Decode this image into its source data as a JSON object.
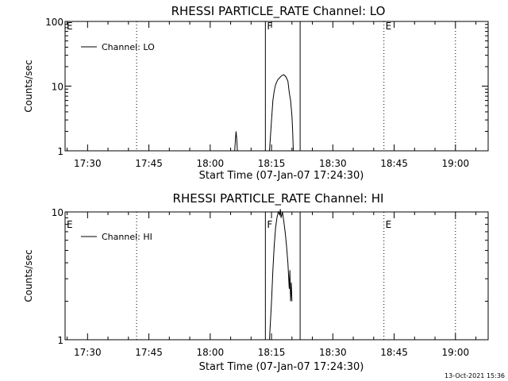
{
  "chart_data": [
    {
      "type": "line",
      "title": "RHESSI PARTICLE_RATE Channel: LO",
      "xlabel": "Start Time (07-Jan-07 17:24:30)",
      "ylabel": "Counts/sec",
      "y_scale": "log",
      "ylim": [
        1,
        100
      ],
      "y_ticks": [
        "1",
        "10",
        "100"
      ],
      "x_ticks": [
        "17:30",
        "17:45",
        "18:00",
        "18:15",
        "18:30",
        "18:45",
        "19:00"
      ],
      "legend": "Channel: LO",
      "series": [
        {
          "name": "Channel: LO",
          "x": [
            "18:06:00",
            "18:06:10",
            "18:06:20",
            "18:06:30",
            "18:06:40",
            "18:07:00",
            "18:14:30",
            "18:15:00",
            "18:15:20",
            "18:15:40",
            "18:16:00",
            "18:16:30",
            "18:17:00",
            "18:17:30",
            "18:18:00",
            "18:18:30",
            "18:19:00",
            "18:19:20",
            "18:19:40",
            "18:20:00",
            "18:20:10",
            "18:20:20"
          ],
          "y": [
            1.0,
            1.5,
            2.0,
            1.5,
            1.0,
            1.0,
            1.0,
            3.0,
            6.0,
            8.5,
            10.5,
            12.5,
            13.5,
            14.5,
            15.0,
            14.0,
            12.0,
            8.0,
            6.0,
            3.5,
            2.0,
            1.0
          ]
        }
      ],
      "vlines_dotted": [
        "17:42:00",
        "18:42:30",
        "19:00:00"
      ],
      "vlines_solid": [
        "18:13:30",
        "18:22:00"
      ],
      "annotations": [
        {
          "text": "E",
          "x": "17:24:30"
        },
        {
          "text": "F",
          "x": "18:13:30"
        },
        {
          "text": "E",
          "x": "18:42:30"
        }
      ]
    },
    {
      "type": "line",
      "title": "RHESSI PARTICLE_RATE Channel: HI",
      "xlabel": "Start Time (07-Jan-07 17:24:30)",
      "ylabel": "Counts/sec",
      "y_scale": "log",
      "ylim": [
        1,
        10
      ],
      "y_ticks": [
        "1",
        "10"
      ],
      "x_ticks": [
        "17:30",
        "17:45",
        "18:00",
        "18:15",
        "18:30",
        "18:45",
        "19:00"
      ],
      "legend": "Channel: HI",
      "series": [
        {
          "name": "Channel: HI",
          "x": [
            "18:14:30",
            "18:15:00",
            "18:15:20",
            "18:15:40",
            "18:16:00",
            "18:16:20",
            "18:16:40",
            "18:17:00",
            "18:17:10",
            "18:17:20",
            "18:17:40",
            "18:18:00",
            "18:18:20",
            "18:18:40",
            "18:19:00",
            "18:19:20",
            "18:19:30",
            "18:19:40",
            "18:19:50",
            "18:20:00"
          ],
          "y": [
            1.0,
            2.0,
            3.5,
            5.5,
            7.5,
            9.0,
            10.0,
            9.5,
            10.5,
            9.0,
            10.0,
            8.5,
            7.0,
            5.5,
            4.0,
            2.5,
            3.5,
            2.0,
            2.8,
            2.0
          ]
        }
      ],
      "vlines_dotted": [
        "17:42:00",
        "18:42:30",
        "19:00:00"
      ],
      "vlines_solid": [
        "18:13:30",
        "18:22:00"
      ],
      "annotations": [
        {
          "text": "E",
          "x": "17:24:30"
        },
        {
          "text": "F",
          "x": "18:13:30"
        },
        {
          "text": "E",
          "x": "18:42:30"
        }
      ]
    }
  ],
  "footer": {
    "timestamp": "13-Oct-2021 15:36"
  }
}
